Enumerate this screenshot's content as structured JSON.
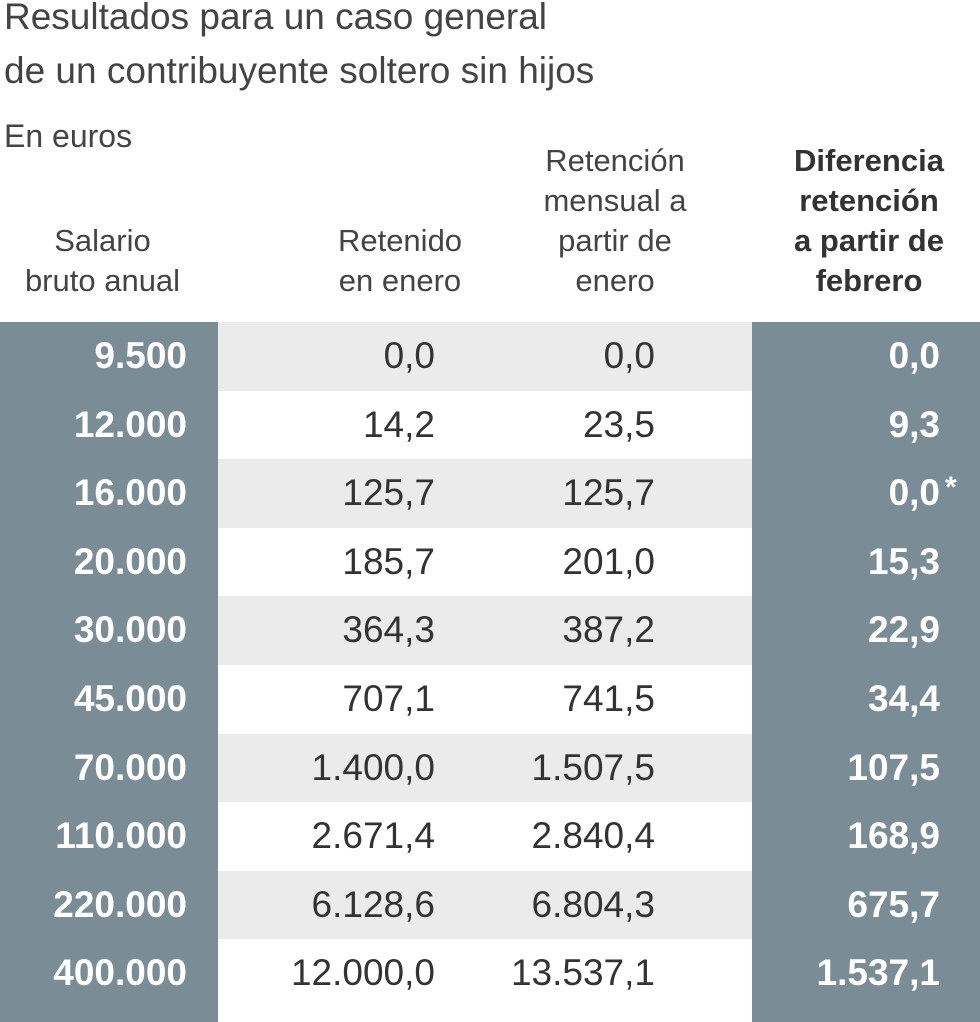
{
  "chart_data": {
    "type": "table",
    "title": [
      "Resultados para un caso general",
      "de un contribuyente soltero sin hijos"
    ],
    "subtitle": "En euros",
    "headers": [
      [
        "Salario",
        "bruto anual"
      ],
      [
        "Retenido",
        "en enero"
      ],
      [
        "Retención",
        "mensual a",
        "partir de",
        "enero"
      ],
      [
        "Diferencia",
        "retención",
        "a partir de",
        "febrero"
      ]
    ],
    "rows": [
      [
        "9.500",
        "0,0",
        "0,0",
        "0,0",
        ""
      ],
      [
        "12.000",
        "14,2",
        "23,5",
        "9,3",
        ""
      ],
      [
        "16.000",
        "125,7",
        "125,7",
        "0,0",
        "*"
      ],
      [
        "20.000",
        "185,7",
        "201,0",
        "15,3",
        ""
      ],
      [
        "30.000",
        "364,3",
        "387,2",
        "22,9",
        ""
      ],
      [
        "45.000",
        "707,1",
        "741,5",
        "34,4",
        ""
      ],
      [
        "70.000",
        "1.400,0",
        "1.507,5",
        "107,5",
        ""
      ],
      [
        "110.000",
        "2.671,4",
        "2.840,4",
        "168,9",
        ""
      ],
      [
        "220.000",
        "6.128,6",
        "6.804,3",
        "675,7",
        ""
      ],
      [
        "400.000",
        "12.000,0",
        "13.537,1",
        "1.537,1",
        ""
      ]
    ],
    "colors": {
      "highlight": "#7a8c96",
      "stripe": "#ebebeb"
    }
  }
}
